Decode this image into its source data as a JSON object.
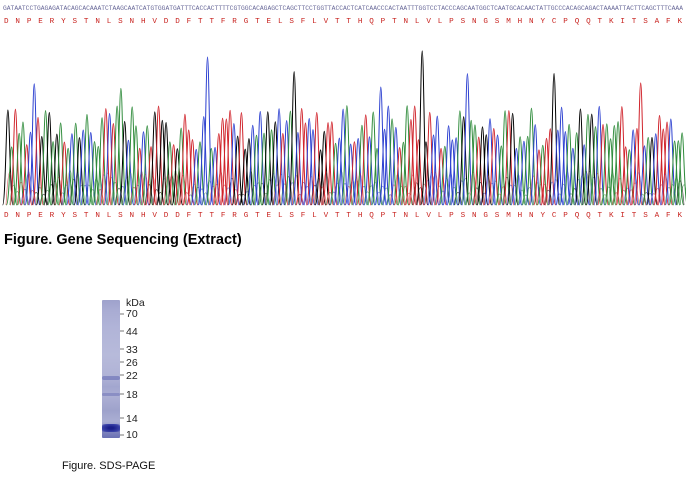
{
  "figure1": {
    "caption": "Figure. Gene Sequencing (Extract)",
    "dna_sequence": "GATAATCCTGAGAGATACAGCACAAATCTAAGCAATCATGTGGATGATTTCACCACTTTTCGTGGCACAGAGCTCAGCTTCCTGGTTACCACTCATCAACCCACTAATTTGGTCCTACCCAGCAATGGCTCAATGCACAACTATTGCCCACAGCAGACTAAAATTACTTCAGCTTTCAAA",
    "protein_sequence": "D N P E R Y S T N L S N H V D D F T T F R G T E L S F L V T T H Q P T N L V L P S N G S M H N Y C P Q Q T K I T S A F K",
    "colors": {
      "A": "#2e8b3a",
      "C": "#2b3fd0",
      "G": "#000000",
      "T": "#d0222a",
      "protein": "#c8231f"
    }
  },
  "figure2": {
    "caption": "Figure. SDS-PAGE",
    "unit_label": "kDa",
    "markers": [
      "70",
      "44",
      "33",
      "26",
      "22",
      "18",
      "14",
      "10"
    ]
  }
}
